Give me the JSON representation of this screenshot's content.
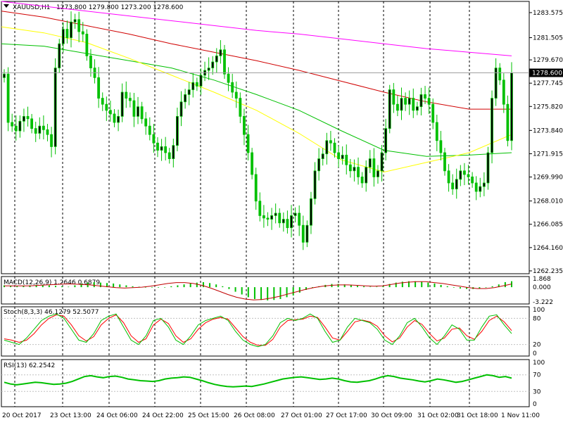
{
  "chart_data": {
    "type": "line",
    "symbol": "XAUUSD,H1",
    "ohlc_label": "1273.800 1279.800 1273.200 1278.600",
    "price_axis": {
      "ticks": [
        1283.575,
        1281.505,
        1279.67,
        1277.745,
        1275.82,
        1273.84,
        1271.915,
        1269.99,
        1268.01,
        1266.085,
        1264.16,
        1262.235
      ],
      "range": [
        1262.0,
        1284.5
      ]
    },
    "current_price": "1278.600",
    "time_labels": [
      "20 Oct 2017",
      "23 Oct 13:00",
      "24 Oct 06:00",
      "24 Oct 22:00",
      "25 Oct 15:00",
      "26 Oct 08:00",
      "27 Oct 01:00",
      "27 Oct 17:00",
      "30 Oct 09:00",
      "31 Oct 02:00",
      "31 Oct 18:00",
      "1 Nov 11:00"
    ],
    "close": [
      1278.5,
      1274.5,
      1274.2,
      1273.8,
      1274.6,
      1275.0,
      1274.8,
      1274.0,
      1273.6,
      1274.2,
      1273.9,
      1273.5,
      1272.5,
      1279.0,
      1281.0,
      1282.2,
      1281.5,
      1282.8,
      1283.0,
      1282.0,
      1281.8,
      1280.0,
      1279.0,
      1278.2,
      1276.5,
      1276.0,
      1275.5,
      1275.2,
      1274.5,
      1275.0,
      1277.0,
      1276.5,
      1276.3,
      1275.0,
      1275.8,
      1274.8,
      1274.2,
      1273.5,
      1272.8,
      1272.2,
      1272.5,
      1272.0,
      1271.5,
      1272.6,
      1275.0,
      1276.2,
      1276.8,
      1277.2,
      1277.8,
      1277.5,
      1278.4,
      1278.8,
      1279.0,
      1279.5,
      1280.0,
      1280.5,
      1278.5,
      1277.8,
      1277.0,
      1276.5,
      1275.0,
      1273.5,
      1272.0,
      1270.2,
      1268.0,
      1266.8,
      1266.6,
      1266.5,
      1266.8,
      1267.0,
      1266.2,
      1266.5,
      1265.8,
      1266.8,
      1267.0,
      1266.0,
      1264.6,
      1266.0,
      1268.2,
      1270.5,
      1271.5,
      1271.9,
      1273.0,
      1272.8,
      1272.0,
      1271.5,
      1271.8,
      1271.0,
      1270.5,
      1270.8,
      1270.0,
      1269.5,
      1270.8,
      1271.5,
      1270.0,
      1270.5,
      1272.0,
      1274.0,
      1277.2,
      1276.0,
      1275.5,
      1276.5,
      1276.0,
      1276.5,
      1275.5,
      1275.8,
      1276.8,
      1276.5,
      1276.0,
      1274.5,
      1273.0,
      1272.0,
      1270.5,
      1269.5,
      1269.0,
      1269.8,
      1270.5,
      1270.2,
      1270.0,
      1269.5,
      1268.8,
      1269.2,
      1269.5,
      1272.0,
      1276.5,
      1279.0,
      1278.0,
      1276.0,
      1273.0,
      1278.6
    ],
    "moving_averages": [
      {
        "color": "#00c000",
        "values": [
          1281.0,
          1280.8,
          1280.2,
          1279.6,
          1279.0,
          1278.0,
          1276.8,
          1275.5,
          1273.8,
          1272.2,
          1271.7,
          1271.8,
          1272.0
        ]
      },
      {
        "color": "#ffff00",
        "values": [
          1282.4,
          1281.9,
          1281.1,
          1279.8,
          1278.4,
          1277.0,
          1275.5,
          1273.6,
          1271.4,
          1270.4,
          1271.2,
          1272.0,
          1273.5
        ]
      },
      {
        "color": "#d00000",
        "values": [
          1283.7,
          1283.2,
          1282.5,
          1281.8,
          1281.0,
          1280.3,
          1279.6,
          1278.8,
          1277.9,
          1277.0,
          1276.2,
          1275.6,
          1275.6
        ]
      },
      {
        "color": "#ff00ff",
        "values": [
          1284.5,
          1284.1,
          1283.7,
          1283.3,
          1282.9,
          1282.5,
          1282.1,
          1281.8,
          1281.4,
          1281.0,
          1280.6,
          1280.3,
          1280.0
        ]
      }
    ],
    "macd": {
      "label": "MACD(12,26,9) 1.2646 0.6879",
      "ticks": [
        "1.868",
        "0.000",
        "-3.222"
      ],
      "histogram": [
        0.4,
        0.3,
        0.2,
        0.3,
        0.4,
        0.5,
        0.5,
        0.4,
        0.3,
        0.2,
        0.1,
        0.4,
        0.8,
        1.0,
        1.1,
        1.0,
        0.9,
        0.8,
        0.6,
        0.4,
        0.2,
        0.1,
        0.0,
        -0.1,
        -0.1,
        0.0,
        0.2,
        0.4,
        0.6,
        0.8,
        1.0,
        1.1,
        0.9,
        0.6,
        0.2,
        -0.4,
        -1.0,
        -1.6,
        -2.2,
        -2.6,
        -2.8,
        -2.9,
        -2.8,
        -2.6,
        -2.2,
        -1.8,
        -1.2,
        -0.6,
        -0.2,
        0.2,
        0.5,
        0.7,
        0.7,
        0.6,
        0.5,
        0.3,
        0.2,
        0.1,
        0.1,
        0.3,
        0.7,
        1.0,
        1.2,
        1.3,
        1.3,
        1.2,
        1.0,
        0.8,
        0.5,
        0.2,
        -0.1,
        -0.3,
        -0.4,
        -0.4,
        -0.3,
        -0.1,
        0.2,
        0.6,
        1.1,
        1.3
      ],
      "signal": [
        0.3,
        0.3,
        0.3,
        0.3,
        0.4,
        0.5,
        0.6,
        0.7,
        0.7,
        0.6,
        0.5,
        0.3,
        0.1,
        -0.1,
        -0.2,
        -0.1,
        0.0,
        0.2,
        0.5,
        0.8,
        1.0,
        1.0,
        0.8,
        0.4,
        -0.2,
        -0.9,
        -1.6,
        -2.2,
        -2.6,
        -2.8,
        -2.7,
        -2.4,
        -2.0,
        -1.5,
        -1.0,
        -0.5,
        -0.1,
        0.2,
        0.4,
        0.5,
        0.5,
        0.4,
        0.3,
        0.2,
        0.3,
        0.6,
        0.9,
        1.1,
        1.2,
        1.2,
        1.0,
        0.8,
        0.5,
        0.2,
        -0.1,
        -0.3,
        -0.3,
        -0.1,
        0.3,
        0.7
      ]
    },
    "stochastic": {
      "label": "Stoch(8,3,3) 46.1279 52.5077",
      "ticks": [
        "100",
        "80",
        "20",
        "0"
      ],
      "main": [
        30,
        25,
        20,
        35,
        55,
        75,
        85,
        90,
        80,
        55,
        30,
        25,
        45,
        75,
        85,
        90,
        60,
        30,
        20,
        40,
        75,
        80,
        60,
        30,
        20,
        40,
        65,
        75,
        80,
        85,
        75,
        50,
        30,
        20,
        15,
        20,
        40,
        70,
        80,
        75,
        80,
        90,
        80,
        50,
        25,
        30,
        60,
        80,
        75,
        70,
        55,
        30,
        20,
        40,
        70,
        80,
        60,
        35,
        20,
        40,
        65,
        55,
        30,
        30,
        60,
        85,
        88,
        65,
        45
      ],
      "signal": [
        33,
        30,
        25,
        30,
        45,
        65,
        80,
        88,
        85,
        65,
        40,
        28,
        38,
        65,
        80,
        88,
        70,
        40,
        25,
        33,
        65,
        78,
        68,
        40,
        25,
        33,
        55,
        70,
        78,
        82,
        78,
        58,
        38,
        25,
        18,
        18,
        32,
        60,
        75,
        77,
        78,
        85,
        82,
        60,
        35,
        30,
        50,
        72,
        76,
        72,
        62,
        40,
        26,
        35,
        60,
        75,
        66,
        45,
        28,
        35,
        55,
        58,
        40,
        32,
        50,
        75,
        85,
        72,
        52
      ]
    },
    "rsi": {
      "label": "RSI(13) 62.2542",
      "ticks": [
        "100",
        "70",
        "30",
        "0"
      ],
      "values": [
        52,
        48,
        46,
        48,
        50,
        52,
        51,
        49,
        47,
        48,
        50,
        54,
        60,
        66,
        68,
        65,
        63,
        66,
        67,
        64,
        60,
        58,
        56,
        55,
        54,
        56,
        60,
        62,
        63,
        65,
        64,
        60,
        56,
        51,
        47,
        44,
        42,
        41,
        42,
        43,
        42,
        45,
        48,
        52,
        56,
        60,
        62,
        64,
        65,
        63,
        61,
        59,
        60,
        62,
        60,
        56,
        53,
        52,
        54,
        56,
        60,
        65,
        68,
        66,
        62,
        60,
        58,
        55,
        53,
        56,
        60,
        58,
        55,
        52,
        54,
        58,
        62,
        66,
        70,
        68,
        64,
        66,
        62
      ]
    }
  }
}
